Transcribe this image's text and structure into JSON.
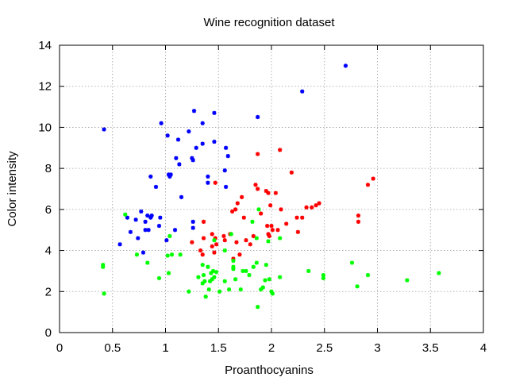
{
  "chart_data": {
    "type": "scatter",
    "title": "Wine recognition dataset",
    "xlabel": "Proanthocyanins",
    "ylabel": "Color intensity",
    "xlim": [
      0,
      4
    ],
    "ylim": [
      0,
      14
    ],
    "xticks": [
      0,
      0.5,
      1,
      1.5,
      2,
      2.5,
      3,
      3.5,
      4
    ],
    "xtick_labels": [
      "0",
      "0.5",
      "1",
      "1.5",
      "2",
      "2.5",
      "3",
      "3.5",
      "4"
    ],
    "yticks": [
      0,
      2,
      4,
      6,
      8,
      10,
      12,
      14
    ],
    "ytick_labels": [
      "0",
      "2",
      "4",
      "6",
      "8",
      "10",
      "12",
      "14"
    ],
    "grid": true,
    "legend": false,
    "series": [
      {
        "color": "#0000ff",
        "points": [
          [
            0.42,
            9.9
          ],
          [
            0.57,
            4.3
          ],
          [
            0.64,
            5.6
          ],
          [
            0.67,
            4.9
          ],
          [
            0.72,
            5.5
          ],
          [
            0.74,
            4.6
          ],
          [
            0.77,
            5.9
          ],
          [
            0.79,
            3.9
          ],
          [
            0.81,
            5.0
          ],
          [
            0.81,
            5.4
          ],
          [
            0.83,
            5.7
          ],
          [
            0.84,
            5.0
          ],
          [
            0.86,
            7.6
          ],
          [
            0.86,
            5.6
          ],
          [
            0.87,
            5.7
          ],
          [
            0.91,
            7.1
          ],
          [
            0.94,
            5.2
          ],
          [
            0.95,
            5.6
          ],
          [
            0.96,
            10.2
          ],
          [
            1.01,
            4.5
          ],
          [
            1.02,
            9.6
          ],
          [
            1.03,
            7.7
          ],
          [
            1.04,
            7.6
          ],
          [
            1.05,
            7.7
          ],
          [
            1.09,
            5.0
          ],
          [
            1.1,
            8.5
          ],
          [
            1.12,
            9.4
          ],
          [
            1.13,
            8.2
          ],
          [
            1.15,
            6.6
          ],
          [
            1.22,
            9.8
          ],
          [
            1.25,
            8.5
          ],
          [
            1.26,
            8.4
          ],
          [
            1.26,
            5.4
          ],
          [
            1.26,
            5.1
          ],
          [
            1.27,
            10.8
          ],
          [
            1.29,
            9.0
          ],
          [
            1.35,
            9.2
          ],
          [
            1.35,
            10.2
          ],
          [
            1.4,
            7.3
          ],
          [
            1.4,
            7.6
          ],
          [
            1.46,
            9.3
          ],
          [
            1.46,
            10.7
          ],
          [
            1.56,
            7.9
          ],
          [
            1.57,
            9.0
          ],
          [
            1.57,
            7.1
          ],
          [
            1.59,
            8.6
          ],
          [
            1.87,
            10.5
          ],
          [
            2.29,
            11.75
          ],
          [
            2.7,
            13.0
          ]
        ]
      },
      {
        "color": "#ff0000",
        "points": [
          [
            1.25,
            4.4
          ],
          [
            1.33,
            4.0
          ],
          [
            1.35,
            3.8
          ],
          [
            1.36,
            5.4
          ],
          [
            1.36,
            4.6
          ],
          [
            1.44,
            4.8
          ],
          [
            1.44,
            4.2
          ],
          [
            1.46,
            3.9
          ],
          [
            1.47,
            4.6
          ],
          [
            1.47,
            7.3
          ],
          [
            1.48,
            4.3
          ],
          [
            1.55,
            4.7
          ],
          [
            1.56,
            4.5
          ],
          [
            1.61,
            4.8
          ],
          [
            1.63,
            5.9
          ],
          [
            1.64,
            3.6
          ],
          [
            1.66,
            6.0
          ],
          [
            1.67,
            4.4
          ],
          [
            1.68,
            6.3
          ],
          [
            1.7,
            3.8
          ],
          [
            1.72,
            6.6
          ],
          [
            1.74,
            5.6
          ],
          [
            1.76,
            4.5
          ],
          [
            1.8,
            4.3
          ],
          [
            1.83,
            4.7
          ],
          [
            1.85,
            7.2
          ],
          [
            1.87,
            8.7
          ],
          [
            1.87,
            7.0
          ],
          [
            1.9,
            5.8
          ],
          [
            1.95,
            6.9
          ],
          [
            1.96,
            5.2
          ],
          [
            1.97,
            4.8
          ],
          [
            1.97,
            6.8
          ],
          [
            1.98,
            4.7
          ],
          [
            1.99,
            6.2
          ],
          [
            2.0,
            5.2
          ],
          [
            2.01,
            5.0
          ],
          [
            2.04,
            6.8
          ],
          [
            2.06,
            5.0
          ],
          [
            2.08,
            8.9
          ],
          [
            2.09,
            6.0
          ],
          [
            2.14,
            5.3
          ],
          [
            2.19,
            7.8
          ],
          [
            2.24,
            5.6
          ],
          [
            2.25,
            4.9
          ],
          [
            2.29,
            5.6
          ],
          [
            2.33,
            6.1
          ],
          [
            2.38,
            6.1
          ],
          [
            2.42,
            6.2
          ],
          [
            2.45,
            6.3
          ],
          [
            2.82,
            5.7
          ],
          [
            2.82,
            5.4
          ],
          [
            2.91,
            7.2
          ],
          [
            2.96,
            7.5
          ]
        ]
      },
      {
        "color": "#00ff00",
        "points": [
          [
            0.41,
            3.3
          ],
          [
            0.41,
            3.2
          ],
          [
            0.42,
            1.9
          ],
          [
            0.62,
            5.75
          ],
          [
            0.73,
            3.8
          ],
          [
            0.83,
            3.4
          ],
          [
            0.94,
            2.65
          ],
          [
            1.02,
            3.75
          ],
          [
            1.03,
            2.9
          ],
          [
            1.04,
            4.7
          ],
          [
            1.06,
            3.8
          ],
          [
            1.14,
            3.8
          ],
          [
            1.22,
            2.0
          ],
          [
            1.31,
            2.7
          ],
          [
            1.35,
            2.4
          ],
          [
            1.35,
            3.3
          ],
          [
            1.36,
            2.8
          ],
          [
            1.37,
            2.5
          ],
          [
            1.38,
            1.75
          ],
          [
            1.4,
            3.2
          ],
          [
            1.41,
            2.1
          ],
          [
            1.42,
            2.5
          ],
          [
            1.43,
            2.9
          ],
          [
            1.44,
            2.6
          ],
          [
            1.45,
            3.0
          ],
          [
            1.46,
            4.5
          ],
          [
            1.46,
            2.7
          ],
          [
            1.48,
            2.95
          ],
          [
            1.51,
            2.0
          ],
          [
            1.56,
            4.0
          ],
          [
            1.56,
            2.5
          ],
          [
            1.6,
            2.1
          ],
          [
            1.62,
            4.8
          ],
          [
            1.64,
            3.2
          ],
          [
            1.64,
            3.5
          ],
          [
            1.64,
            3.1
          ],
          [
            1.66,
            2.6
          ],
          [
            1.71,
            2.1
          ],
          [
            1.73,
            3.0
          ],
          [
            1.76,
            3.0
          ],
          [
            1.79,
            2.8
          ],
          [
            1.82,
            5.4
          ],
          [
            1.83,
            3.2
          ],
          [
            1.86,
            4.6
          ],
          [
            1.86,
            3.4
          ],
          [
            1.87,
            1.25
          ],
          [
            1.88,
            6.0
          ],
          [
            1.9,
            2.1
          ],
          [
            1.92,
            2.2
          ],
          [
            1.94,
            2.55
          ],
          [
            1.95,
            3.3
          ],
          [
            1.97,
            4.45
          ],
          [
            1.98,
            2.6
          ],
          [
            2.0,
            2.0
          ],
          [
            2.01,
            1.9
          ],
          [
            2.08,
            2.7
          ],
          [
            2.08,
            4.6
          ],
          [
            2.35,
            3.0
          ],
          [
            2.49,
            2.8
          ],
          [
            2.49,
            2.65
          ],
          [
            2.76,
            3.4
          ],
          [
            2.81,
            2.25
          ],
          [
            2.91,
            2.8
          ],
          [
            3.28,
            2.55
          ],
          [
            3.58,
            2.9
          ]
        ]
      }
    ]
  }
}
